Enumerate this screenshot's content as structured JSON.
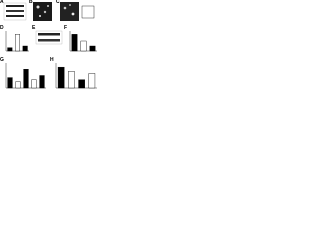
{
  "figure": {
    "panels": [
      {
        "label": "A",
        "kind": "blot"
      },
      {
        "label": "B",
        "kind": "image"
      },
      {
        "label": "C",
        "kind": "image"
      },
      {
        "label": "D",
        "kind": "bar",
        "values": [
          0.2,
          1.0,
          0.3
        ],
        "ylim": [
          0,
          1.2
        ]
      },
      {
        "label": "E",
        "kind": "blot"
      },
      {
        "label": "F",
        "kind": "bar",
        "values": [
          1.0,
          0.6,
          0.3
        ],
        "ylim": [
          0,
          1.2
        ]
      },
      {
        "label": "G",
        "kind": "bar",
        "values": [
          0.5,
          0.3,
          0.9,
          0.4,
          0.6
        ],
        "ylim": [
          0,
          1.2
        ]
      },
      {
        "label": "H",
        "kind": "bar",
        "values": [
          1.0,
          0.8,
          0.4,
          0.7
        ],
        "ylim": [
          0,
          1.2
        ]
      }
    ]
  }
}
